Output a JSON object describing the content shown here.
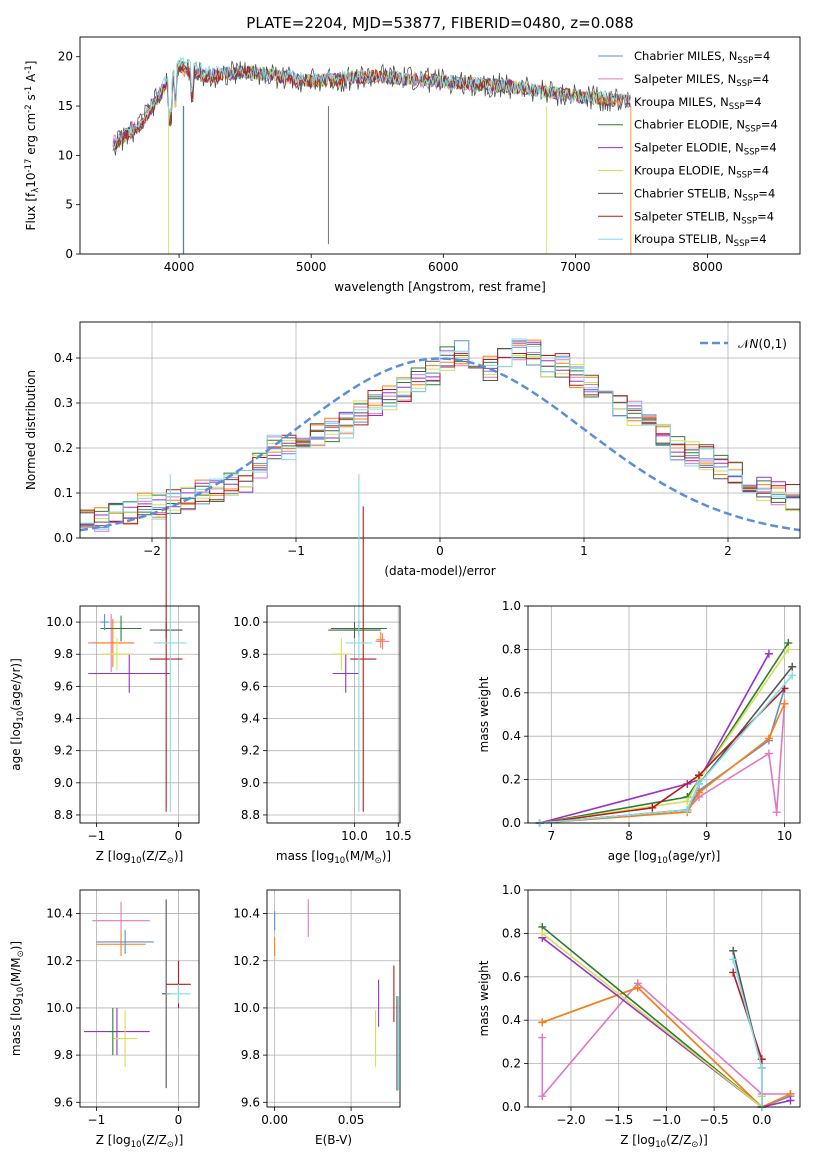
{
  "figure": {
    "title": "PLATE=2204, MJD=53877, FIBERID=0480, z=0.088"
  },
  "chart_data": [
    {
      "panel": "spectrum",
      "type": "line",
      "xlabel": "wavelength [Angstrom, rest frame]",
      "ylabel": "Flux [f$_\\lambda$10$^{-17}$ erg cm$^{-2}$ s$^{-1}$ A$^{-1}$]",
      "xlim": [
        3250,
        8700
      ],
      "ylim": [
        0,
        22
      ],
      "xticks": [
        4000,
        5000,
        6000,
        7000,
        8000
      ],
      "yticks": [
        0,
        5,
        10,
        15,
        20
      ],
      "legend_position": "top-right",
      "series": [
        {
          "name": "Chabrier MILES, N$_{SSP}$=4",
          "color": "#5b8fd6",
          "x": [
            3500,
            3700,
            4000,
            4200,
            4500,
            5000,
            5500,
            6000,
            6500,
            7000,
            7400
          ],
          "y": [
            11,
            13,
            19,
            18,
            18.5,
            17.5,
            18,
            17.5,
            17,
            16,
            15.5
          ]
        },
        {
          "name": "Salpeter MILES, N$_{SSP}$=4",
          "color": "#e377c2",
          "x": [
            3500,
            3700,
            4000,
            4200,
            4500,
            5000,
            5500,
            6000,
            6500,
            7000,
            7400
          ],
          "y": [
            11.5,
            13.5,
            19,
            18,
            18.5,
            17.5,
            18,
            17.2,
            16.8,
            16,
            15.5
          ]
        },
        {
          "name": "Kroupa MILES, N$_{SSP}$=4",
          "color": "#ff7f0e",
          "x": [
            3500,
            3700,
            4000,
            4200,
            4500,
            5000,
            5500,
            6000,
            6500,
            7000,
            7400
          ],
          "y": [
            11,
            13,
            18.8,
            18,
            18.5,
            17.5,
            18,
            17.5,
            17,
            16,
            15.5
          ]
        },
        {
          "name": "Chabrier ELODIE, N$_{SSP}$=4",
          "color": "#2e7d32",
          "x": [
            3500,
            3700,
            4000,
            4200,
            4500,
            5000,
            5500,
            6000,
            6500,
            7000,
            7400
          ],
          "y": [
            11,
            13,
            19,
            18,
            18.5,
            17.5,
            18,
            17.5,
            17,
            16,
            15.5
          ]
        },
        {
          "name": "Salpeter ELODIE, N$_{SSP}$=4",
          "color": "#9b30c8",
          "x": [
            3500,
            3700,
            4000,
            4200,
            4500,
            5000,
            5500,
            6000,
            6500,
            7000,
            7400
          ],
          "y": [
            11,
            13,
            19,
            18,
            18.5,
            17.5,
            18,
            17.5,
            17,
            16,
            15.5
          ]
        },
        {
          "name": "Kroupa ELODIE, N$_{SSP}$=4",
          "color": "#d4e157",
          "x": [
            3500,
            3700,
            4000,
            4200,
            4500,
            5000,
            5500,
            6000,
            6500,
            7000,
            7400
          ],
          "y": [
            11,
            13,
            19,
            18,
            18.5,
            17.5,
            18,
            17.5,
            17,
            16,
            15.5
          ]
        },
        {
          "name": "Chabrier STELIB, N$_{SSP}$=4",
          "color": "#555555",
          "x": [
            3500,
            3700,
            4000,
            4200,
            4500,
            5000,
            5500,
            6000,
            6500,
            7000,
            7400
          ],
          "y": [
            11,
            13,
            19,
            18,
            18.5,
            17.5,
            18,
            17.5,
            17,
            16,
            15.5
          ]
        },
        {
          "name": "Salpeter STELIB, N$_{SSP}$=4",
          "color": "#b71c1c",
          "x": [
            3500,
            3700,
            4000,
            4200,
            4500,
            5000,
            5500,
            6000,
            6500,
            7000,
            7400
          ],
          "y": [
            11,
            13,
            19,
            18,
            18.5,
            17.5,
            18,
            17.5,
            17,
            16,
            15.5
          ]
        },
        {
          "name": "Kroupa STELIB, N$_{SSP}$=4",
          "color": "#80deea",
          "x": [
            3500,
            3700,
            4000,
            4200,
            4500,
            5000,
            5500,
            6000,
            6500,
            7000,
            7400
          ],
          "y": [
            11,
            13.5,
            19.5,
            18.5,
            18.5,
            17.8,
            18,
            17.5,
            17,
            16,
            15.8
          ]
        }
      ]
    },
    {
      "panel": "residuals",
      "type": "line",
      "xlabel": "(data-model)/error",
      "ylabel": "Normed distribution",
      "xlim": [
        -2.5,
        2.5
      ],
      "ylim": [
        0,
        0.48
      ],
      "xticks": [
        -2,
        -1,
        0,
        1,
        2
      ],
      "yticks": [
        0.0,
        0.1,
        0.2,
        0.3,
        0.4
      ],
      "grid": true,
      "legend_position": "top-right",
      "reference": {
        "name": "$\\mathcal{N}(0,1)$",
        "color": "#5b8fd6",
        "style": "dashed"
      },
      "hist_bin_width": 0.1,
      "hist_envelope": [
        0.04,
        0.045,
        0.05,
        0.06,
        0.07,
        0.07,
        0.08,
        0.085,
        0.1,
        0.11,
        0.12,
        0.13,
        0.16,
        0.2,
        0.2,
        0.2,
        0.23,
        0.24,
        0.25,
        0.28,
        0.3,
        0.31,
        0.33,
        0.35,
        0.37,
        0.4,
        0.41,
        0.4,
        0.38,
        0.4,
        0.42,
        0.41,
        0.38,
        0.38,
        0.36,
        0.34,
        0.32,
        0.3,
        0.28,
        0.25,
        0.23,
        0.2,
        0.19,
        0.18,
        0.16,
        0.14,
        0.12,
        0.11,
        0.1,
        0.09
      ]
    },
    {
      "panel": "age-vs-Z",
      "type": "scatter",
      "xlabel": "Z [log$_{10}$(Z/Z$_\\odot$)]",
      "ylabel": "age  [log$_{10}$(age/yr)]",
      "xlim": [
        -1.2,
        0.25
      ],
      "ylim": [
        8.75,
        10.1
      ],
      "xticks": [
        -1,
        0
      ],
      "yticks": [
        8.8,
        9.0,
        9.2,
        9.4,
        9.6,
        9.8,
        10.0
      ],
      "grid": true,
      "points": [
        {
          "x": -0.82,
          "y": 9.87,
          "xerr": 0.28,
          "yerr": 0.18,
          "color": "#e377c2"
        },
        {
          "x": -0.8,
          "y": 9.87,
          "xerr": 0.25,
          "yerr": 0.15,
          "color": "#ff7f0e"
        },
        {
          "x": -0.7,
          "y": 9.96,
          "xerr": 0.25,
          "yerr": 0.08,
          "color": "#2e7d32"
        },
        {
          "x": -0.6,
          "y": 9.68,
          "xerr": 0.5,
          "yerr": 0.12,
          "color": "#9b30c8"
        },
        {
          "x": -0.75,
          "y": 9.8,
          "xerr": 0.2,
          "yerr": 0.1,
          "color": "#d4e157"
        },
        {
          "x": -0.15,
          "y": 9.95,
          "xerr": 0.2,
          "yerr": 0.05,
          "color": "#555555"
        },
        {
          "x": -0.15,
          "y": 9.77,
          "xerr": 0.2,
          "yerr": 0.95,
          "color": "#b71c1c"
        },
        {
          "x": -0.1,
          "y": 9.87,
          "xerr": 0.2,
          "yerr": 1.05,
          "color": "#80deea"
        },
        {
          "x": -0.9,
          "y": 10.0,
          "xerr": 0.05,
          "yerr": 0.05,
          "color": "#5b8fd6"
        }
      ]
    },
    {
      "panel": "age-vs-mass",
      "type": "scatter",
      "xlabel": "mass [log$_{10}$(M/M$_\\odot$)]",
      "ylabel": "",
      "xlim": [
        9.0,
        10.52
      ],
      "ylim": [
        8.75,
        10.1
      ],
      "xticks": [
        10.0,
        10.5
      ],
      "yticks": [
        8.8,
        9.0,
        9.2,
        9.4,
        9.6,
        9.8,
        10.0
      ],
      "grid": true,
      "points": [
        {
          "x": 10.32,
          "y": 9.88,
          "xerr": 0.08,
          "yerr": 0.05,
          "color": "#e377c2"
        },
        {
          "x": 10.3,
          "y": 9.89,
          "xerr": 0.05,
          "yerr": 0.05,
          "color": "#ff7f0e"
        },
        {
          "x": 10.05,
          "y": 9.96,
          "xerr": 0.32,
          "yerr": 0.05,
          "color": "#2e7d32"
        },
        {
          "x": 9.9,
          "y": 9.68,
          "xerr": 0.15,
          "yerr": 0.12,
          "color": "#9b30c8"
        },
        {
          "x": 9.85,
          "y": 9.8,
          "xerr": 0.1,
          "yerr": 0.1,
          "color": "#d4e157"
        },
        {
          "x": 10.0,
          "y": 9.95,
          "xerr": 0.3,
          "yerr": 0.05,
          "color": "#555555"
        },
        {
          "x": 10.1,
          "y": 9.77,
          "xerr": 0.15,
          "yerr": 0.95,
          "color": "#b71c1c"
        },
        {
          "x": 10.05,
          "y": 9.87,
          "xerr": 0.15,
          "yerr": 1.05,
          "color": "#80deea"
        }
      ]
    },
    {
      "panel": "weight-vs-age",
      "type": "line",
      "xlabel": "age  [log$_{10}$(age/yr)]",
      "ylabel": "mass weight",
      "xlim": [
        6.7,
        10.2
      ],
      "ylim": [
        0,
        1.0
      ],
      "xticks": [
        7,
        8,
        9,
        10
      ],
      "yticks": [
        0.0,
        0.2,
        0.4,
        0.6,
        0.8,
        1.0
      ],
      "grid": true,
      "series": [
        {
          "name": "Chabrier MILES",
          "color": "#5b8fd6",
          "x": [
            6.85,
            8.75,
            8.9,
            9.8,
            10.0
          ],
          "y": [
            0.0,
            0.06,
            0.15,
            0.38,
            0.62
          ]
        },
        {
          "name": "Salpeter MILES",
          "color": "#e377c2",
          "x": [
            6.85,
            8.75,
            8.9,
            9.8,
            9.9,
            10.0
          ],
          "y": [
            0.0,
            0.06,
            0.12,
            0.32,
            0.05,
            0.55
          ]
        },
        {
          "name": "Kroupa MILES",
          "color": "#ff7f0e",
          "x": [
            6.85,
            8.75,
            8.9,
            9.8,
            10.0
          ],
          "y": [
            0.0,
            0.05,
            0.14,
            0.39,
            0.55
          ]
        },
        {
          "name": "Chabrier ELODIE",
          "color": "#2e7d32",
          "x": [
            6.85,
            8.75,
            8.9,
            10.05
          ],
          "y": [
            0.0,
            0.12,
            0.2,
            0.83
          ]
        },
        {
          "name": "Salpeter ELODIE",
          "color": "#9b30c8",
          "x": [
            6.85,
            8.75,
            8.9,
            9.8
          ],
          "y": [
            0.0,
            0.18,
            0.2,
            0.78
          ]
        },
        {
          "name": "Kroupa ELODIE",
          "color": "#d4e157",
          "x": [
            6.85,
            8.75,
            8.9,
            10.05
          ],
          "y": [
            0.0,
            0.1,
            0.2,
            0.8
          ]
        },
        {
          "name": "Chabrier STELIB",
          "color": "#555555",
          "x": [
            6.85,
            8.75,
            8.9,
            10.1
          ],
          "y": [
            0.0,
            0.06,
            0.18,
            0.72
          ]
        },
        {
          "name": "Salpeter STELIB",
          "color": "#b71c1c",
          "x": [
            6.85,
            8.3,
            8.9,
            10.0
          ],
          "y": [
            0.0,
            0.07,
            0.22,
            0.62
          ]
        },
        {
          "name": "Kroupa STELIB",
          "color": "#80deea",
          "x": [
            6.85,
            8.75,
            8.9,
            10.1
          ],
          "y": [
            0.0,
            0.06,
            0.18,
            0.68
          ]
        }
      ]
    },
    {
      "panel": "mass-vs-Z",
      "type": "scatter",
      "xlabel": "Z [log$_{10}$(Z/Z$_\\odot$)]",
      "ylabel": "mass [log$_{10}$(M/M$_\\odot$)]",
      "xlim": [
        -1.2,
        0.25
      ],
      "ylim": [
        9.58,
        10.5
      ],
      "xticks": [
        -1,
        0
      ],
      "yticks": [
        9.6,
        9.8,
        10.0,
        10.2,
        10.4
      ],
      "grid": true,
      "points": [
        {
          "x": -0.7,
          "y": 10.37,
          "xerr": 0.35,
          "yerr": 0.08,
          "color": "#e377c2"
        },
        {
          "x": -0.7,
          "y": 10.27,
          "xerr": 0.3,
          "yerr": 0.05,
          "color": "#ff7f0e"
        },
        {
          "x": -0.65,
          "y": 10.28,
          "xerr": 0.35,
          "yerr": 0.05,
          "color": "#5b8fd6"
        },
        {
          "x": -0.75,
          "y": 9.9,
          "xerr": 0.4,
          "yerr": 0.1,
          "color": "#9b30c8"
        },
        {
          "x": -0.65,
          "y": 9.87,
          "xerr": 0.15,
          "yerr": 0.12,
          "color": "#d4e157"
        },
        {
          "x": -0.8,
          "y": 9.9,
          "xerr": 0.05,
          "yerr": 0.1,
          "color": "#2e7d32"
        },
        {
          "x": -0.15,
          "y": 10.06,
          "xerr": 0.05,
          "yerr": 0.4,
          "color": "#555555"
        },
        {
          "x": 0.0,
          "y": 10.1,
          "xerr": 0.15,
          "yerr": 0.1,
          "color": "#b71c1c"
        },
        {
          "x": 0.0,
          "y": 10.06,
          "xerr": 0.15,
          "yerr": 0.04,
          "color": "#80deea"
        }
      ]
    },
    {
      "panel": "mass-vs-EBV",
      "type": "scatter",
      "xlabel": "E(B-V)",
      "ylabel": "",
      "xlim": [
        -0.005,
        0.082
      ],
      "ylim": [
        9.58,
        10.5
      ],
      "xticks": [
        0.0,
        0.05
      ],
      "yticks": [
        9.6,
        9.8,
        10.0,
        10.2,
        10.4
      ],
      "grid": true,
      "points": [
        {
          "x": 0.0,
          "y": 10.37,
          "yerr": 0.04,
          "color": "#5b8fd6"
        },
        {
          "x": 0.0,
          "y": 10.26,
          "yerr": 0.04,
          "color": "#ff7f0e"
        },
        {
          "x": 0.022,
          "y": 10.38,
          "yerr": 0.08,
          "color": "#e377c2"
        },
        {
          "x": 0.068,
          "y": 10.02,
          "yerr": 0.1,
          "color": "#9b30c8"
        },
        {
          "x": 0.066,
          "y": 9.87,
          "yerr": 0.12,
          "color": "#d4e157"
        },
        {
          "x": 0.078,
          "y": 10.06,
          "yerr": 0.12,
          "color": "#b71c1c"
        },
        {
          "x": 0.08,
          "y": 9.85,
          "yerr": 0.2,
          "color": "#555555"
        },
        {
          "x": 0.081,
          "y": 9.85,
          "yerr": 0.2,
          "color": "#80deea"
        }
      ]
    },
    {
      "panel": "weight-vs-Z",
      "type": "line",
      "xlabel": "Z [log$_{10}$(Z/Z$_\\odot$)]",
      "ylabel": "mass weight",
      "xlim": [
        -2.45,
        0.4
      ],
      "ylim": [
        0,
        1.0
      ],
      "xticks": [
        -2.0,
        -1.5,
        -1.0,
        -0.5,
        0.0
      ],
      "yticks": [
        0.0,
        0.2,
        0.4,
        0.6,
        0.8,
        1.0
      ],
      "grid": true,
      "series": [
        {
          "name": "Chabrier MILES",
          "color": "#5b8fd6",
          "x": [
            -2.3,
            -1.3,
            0.0,
            0.3
          ],
          "y": [
            0.39,
            0.55,
            0.0,
            0.05
          ]
        },
        {
          "name": "Salpeter MILES",
          "color": "#e377c2",
          "x": [
            -2.3,
            -2.3,
            -1.3,
            0.0,
            0.3
          ],
          "y": [
            0.32,
            0.05,
            0.57,
            0.06,
            0.06
          ]
        },
        {
          "name": "Kroupa MILES",
          "color": "#ff7f0e",
          "x": [
            -2.3,
            -1.3,
            0.0,
            0.3
          ],
          "y": [
            0.39,
            0.55,
            0.0,
            0.06
          ]
        },
        {
          "name": "Chabrier ELODIE",
          "color": "#2e7d32",
          "x": [
            -2.3,
            0.0,
            0.0
          ],
          "y": [
            0.83,
            0.0,
            0.05
          ]
        },
        {
          "name": "Salpeter ELODIE",
          "color": "#9b30c8",
          "x": [
            -2.3,
            0.0,
            0.3
          ],
          "y": [
            0.78,
            0.0,
            0.03
          ]
        },
        {
          "name": "Kroupa ELODIE",
          "color": "#d4e157",
          "x": [
            -2.3,
            0.0,
            0.0
          ],
          "y": [
            0.8,
            0.0,
            0.05
          ]
        },
        {
          "name": "Chabrier STELIB",
          "color": "#555555",
          "x": [
            -0.3,
            0.0,
            0.0
          ],
          "y": [
            0.72,
            0.18,
            0.0
          ]
        },
        {
          "name": "Salpeter STELIB",
          "color": "#b71c1c",
          "x": [
            -0.3,
            0.0,
            0.0
          ],
          "y": [
            0.62,
            0.22,
            0.0
          ]
        },
        {
          "name": "Kroupa STELIB",
          "color": "#80deea",
          "x": [
            -0.3,
            0.0,
            0.0
          ],
          "y": [
            0.68,
            0.18,
            0.0
          ]
        }
      ]
    }
  ]
}
